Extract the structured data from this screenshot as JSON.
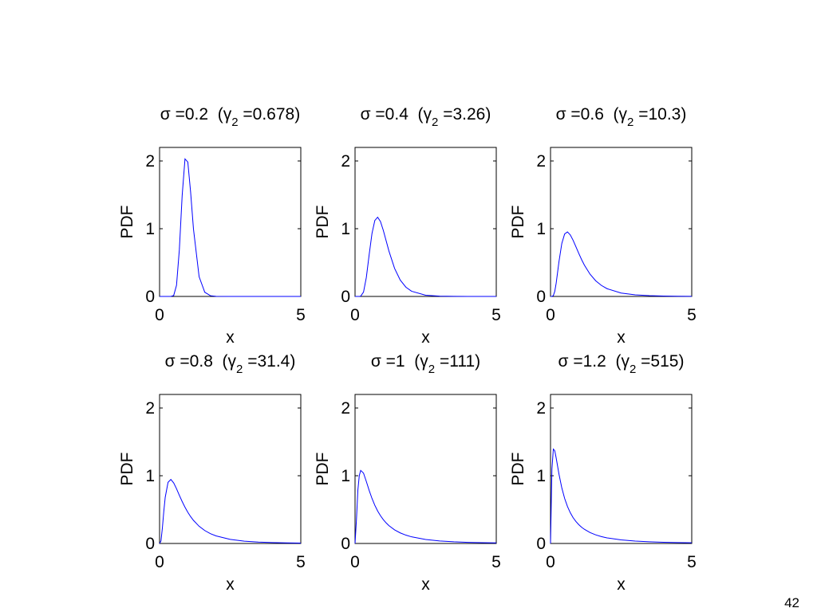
{
  "page_number": "42",
  "chart_data": [
    {
      "type": "line",
      "title": [
        "σ =0.2  (γ",
        "2",
        " =0.678)"
      ],
      "x_label": "x",
      "y_label": "PDF",
      "x": [
        0,
        0.05,
        0.1,
        0.15,
        0.2,
        0.3,
        0.4,
        0.5,
        0.6,
        0.7,
        0.8,
        0.9,
        1,
        1.1,
        1.2,
        1.4,
        1.6,
        1.8,
        2,
        2.5,
        3,
        3.5,
        4,
        4.5,
        5
      ],
      "values": [
        0,
        0,
        0,
        0,
        0,
        0,
        0,
        0.014,
        0.164,
        0.689,
        1.49,
        2.03,
        1.985,
        1.536,
        0.996,
        0.291,
        0.062,
        0.011,
        0.0017,
        0,
        0,
        0,
        0,
        0,
        0
      ],
      "color": "#0000ff",
      "xlim": [
        0,
        5
      ],
      "ylim": [
        0,
        2.2
      ],
      "xticks": [
        0,
        5
      ],
      "yticks": [
        0,
        1,
        2
      ],
      "grid": false
    },
    {
      "type": "line",
      "title": [
        "σ =0.4  (γ",
        "2",
        " =3.26)"
      ],
      "x_label": "x",
      "y_label": "PDF",
      "x": [
        0,
        0.05,
        0.1,
        0.15,
        0.2,
        0.3,
        0.4,
        0.5,
        0.6,
        0.7,
        0.8,
        0.9,
        1,
        1.1,
        1.2,
        1.4,
        1.6,
        1.8,
        2,
        2.5,
        3,
        3.5,
        4,
        4.5,
        5
      ],
      "values": [
        0,
        0,
        0,
        0,
        0.0033,
        0.064,
        0.281,
        0.617,
        0.93,
        1.121,
        1.17,
        1.106,
        0.977,
        0.824,
        0.67,
        0.414,
        0.242,
        0.137,
        0.077,
        0.018,
        0.0043,
        0.0011,
        0.0003,
        0.0001,
        0
      ],
      "color": "#0000ff",
      "xlim": [
        0,
        5
      ],
      "ylim": [
        0,
        2.2
      ],
      "xticks": [
        0,
        5
      ],
      "yticks": [
        0,
        1,
        2
      ],
      "grid": false
    },
    {
      "type": "line",
      "title": [
        "σ =0.6  (γ",
        "2",
        " =10.3)"
      ],
      "x_label": "x",
      "y_label": "PDF",
      "x": [
        0,
        0.05,
        0.1,
        0.15,
        0.2,
        0.3,
        0.4,
        0.5,
        0.6,
        0.7,
        0.8,
        0.9,
        1,
        1.1,
        1.2,
        1.4,
        1.6,
        1.8,
        2,
        2.5,
        3,
        3.5,
        4,
        4.5,
        5
      ],
      "values": [
        0,
        0.0002,
        0.0127,
        0.074,
        0.195,
        0.516,
        0.783,
        0.923,
        0.952,
        0.909,
        0.829,
        0.733,
        0.636,
        0.544,
        0.462,
        0.328,
        0.231,
        0.163,
        0.115,
        0.05,
        0.0229,
        0.011,
        0.0055,
        0.0029,
        0.0016
      ],
      "color": "#0000ff",
      "xlim": [
        0,
        5
      ],
      "ylim": [
        0,
        2.2
      ],
      "xticks": [
        0,
        5
      ],
      "yticks": [
        0,
        1,
        2
      ],
      "grid": false
    },
    {
      "type": "line",
      "title": [
        "σ =0.8  (γ",
        "2",
        " =31.4)"
      ],
      "x_label": "x",
      "y_label": "PDF",
      "x": [
        0,
        0.05,
        0.1,
        0.15,
        0.2,
        0.3,
        0.4,
        0.5,
        0.6,
        0.7,
        0.8,
        0.9,
        1,
        1.1,
        1.2,
        1.4,
        1.6,
        1.8,
        2,
        2.5,
        3,
        3.5,
        4,
        4.5,
        5
      ],
      "values": [
        0,
        0.037,
        0.231,
        0.476,
        0.681,
        0.903,
        0.945,
        0.894,
        0.808,
        0.711,
        0.619,
        0.535,
        0.46,
        0.396,
        0.341,
        0.254,
        0.191,
        0.145,
        0.112,
        0.0605,
        0.0345,
        0.0206,
        0.0128,
        0.0082,
        0.0054
      ],
      "color": "#0000ff",
      "xlim": [
        0,
        5
      ],
      "ylim": [
        0,
        2.2
      ],
      "xticks": [
        0,
        5
      ],
      "yticks": [
        0,
        1,
        2
      ],
      "grid": false
    },
    {
      "type": "line",
      "title": [
        "σ =1  (γ",
        "2",
        " =111)"
      ],
      "x_label": "x",
      "y_label": "PDF",
      "x": [
        0,
        0.05,
        0.1,
        0.15,
        0.2,
        0.3,
        0.4,
        0.5,
        0.6,
        0.7,
        0.8,
        0.9,
        1,
        1.1,
        1.2,
        1.4,
        1.6,
        1.8,
        2,
        2.5,
        3,
        3.5,
        4,
        4.5,
        5
      ],
      "values": [
        0,
        0.354,
        0.786,
        1.002,
        1.079,
        1.038,
        0.915,
        0.783,
        0.665,
        0.564,
        0.48,
        0.41,
        0.352,
        0.304,
        0.263,
        0.201,
        0.156,
        0.123,
        0.098,
        0.0585,
        0.0371,
        0.0245,
        0.0168,
        0.0119,
        0.0086
      ],
      "color": "#0000ff",
      "xlim": [
        0,
        5
      ],
      "ylim": [
        0,
        2.2
      ],
      "xticks": [
        0,
        5
      ],
      "yticks": [
        0,
        1,
        2
      ],
      "grid": false
    },
    {
      "type": "line",
      "title": [
        "σ =1.2  (γ",
        "2",
        " =515)"
      ],
      "x_label": "x",
      "y_label": "PDF",
      "x": [
        0,
        0.05,
        0.1,
        0.15,
        0.2,
        0.3,
        0.4,
        0.5,
        0.6,
        0.7,
        0.8,
        0.9,
        1,
        1.1,
        1.2,
        1.4,
        1.6,
        1.8,
        2,
        2.5,
        3,
        3.5,
        4,
        4.5,
        5
      ],
      "values": [
        0,
        1.1,
        1.393,
        1.37,
        1.263,
        1.022,
        0.82,
        0.665,
        0.546,
        0.454,
        0.381,
        0.324,
        0.278,
        0.24,
        0.209,
        0.161,
        0.127,
        0.102,
        0.083,
        0.0525,
        0.0351,
        0.0246,
        0.0178,
        0.0133,
        0.0101
      ],
      "color": "#0000ff",
      "xlim": [
        0,
        5
      ],
      "ylim": [
        0,
        2.2
      ],
      "xticks": [
        0,
        5
      ],
      "yticks": [
        0,
        1,
        2
      ],
      "grid": false
    }
  ]
}
